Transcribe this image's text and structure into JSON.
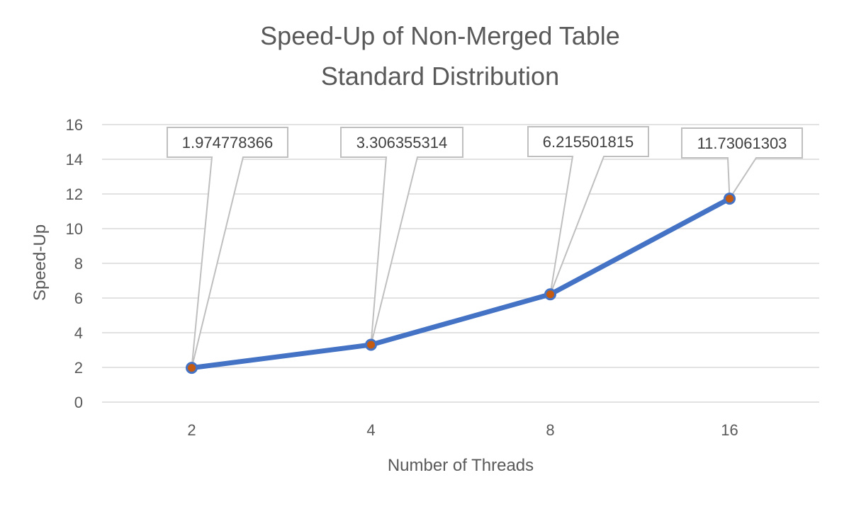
{
  "chart_data": {
    "type": "line",
    "title": [
      "Speed-Up of Non-Merged Table",
      "Standard Distribution"
    ],
    "xlabel": "Number of Threads",
    "ylabel": "Speed-Up",
    "categories": [
      "2",
      "4",
      "8",
      "16"
    ],
    "y_ticks": [
      "0",
      "2",
      "4",
      "6",
      "8",
      "10",
      "12",
      "14",
      "16"
    ],
    "ylim": [
      0,
      16
    ],
    "grid": "horizontal",
    "legend": "none",
    "series": [
      {
        "values": [
          1.974778366,
          3.306355314,
          6.215501815,
          11.73061303
        ],
        "data_labels": [
          "1.974778366",
          "3.306355314",
          "6.215501815",
          "11.73061303"
        ]
      }
    ],
    "colors": {
      "line": "#4472C4",
      "marker_fill": "#C55A11",
      "grid": "#D9D9D9",
      "text": "#595959",
      "label_border": "#BFBFBF"
    }
  }
}
